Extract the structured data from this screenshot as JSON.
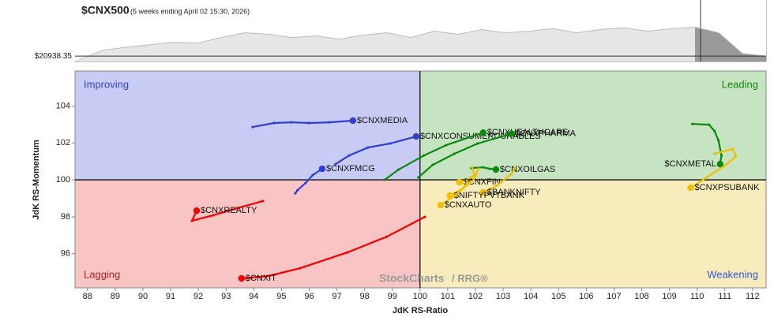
{
  "chart_data": {
    "type": "rrg",
    "title": "$CNX500",
    "subtitle": "(5 weeks ending April 02 15:30, 2026)",
    "xlabel": "JdK RS-Ratio",
    "ylabel": "JdK RS-Momentum",
    "quadrants": {
      "top_left": "Improving",
      "top_right": "Leading",
      "bottom_right": "Weakening",
      "bottom_left": "Lagging"
    },
    "watermark": "StockCharts",
    "watermark2": "/ RRG®",
    "xlim": [
      87.55,
      112.49
    ],
    "ylim": [
      94.15,
      105.9
    ],
    "xticks": [
      88,
      89,
      90,
      91,
      92,
      93,
      94,
      95,
      96,
      97,
      98,
      99,
      100,
      101,
      102,
      103,
      104,
      105,
      106,
      107,
      108,
      109,
      110,
      111,
      112
    ],
    "yticks": [
      96,
      98,
      100,
      102,
      104
    ],
    "center": [
      100,
      100
    ],
    "benchmark": {
      "last_label": "$20938.35",
      "last_value": 20938.35,
      "ylim": [
        20600,
        24200
      ],
      "values": [
        20699,
        21300,
        21500,
        21650,
        21800,
        21750,
        22100,
        22400,
        22300,
        22100,
        22200,
        22000,
        22250,
        22400,
        22100,
        22500,
        22300,
        22600,
        22400,
        22500,
        22650,
        22400,
        22600,
        22700,
        22500,
        22650,
        22750,
        22400,
        21100,
        20938.35
      ]
    },
    "series": [
      {
        "name": "$CNXMEDIA",
        "color": "#2f3fd0",
        "x": [
          93.96,
          94.73,
          95.36,
          96.01,
          96.72,
          97.58
        ],
        "y": [
          102.86,
          103.08,
          103.12,
          103.08,
          103.12,
          103.21
        ]
      },
      {
        "name": "$CNXFMCG",
        "color": "#2f3fd0",
        "x": [
          95.5,
          95.58,
          95.87,
          96.13,
          96.47
        ],
        "y": [
          99.27,
          99.44,
          99.83,
          100.26,
          100.6
        ]
      },
      {
        "name": "$CNXCONSUMERDURABLES",
        "color": "#2f3fd0",
        "x": [
          96.95,
          97.44,
          98.12,
          98.92,
          99.86
        ],
        "y": [
          100.85,
          101.32,
          101.75,
          101.97,
          102.35
        ]
      },
      {
        "name": "$CNXHEALTHCARE",
        "color": "#0a8a0a",
        "x": [
          98.72,
          99.23,
          100.14,
          100.94,
          102.28
        ],
        "y": [
          100.0,
          100.56,
          101.32,
          101.88,
          102.56
        ]
      },
      {
        "name": "$CNXPHARMA",
        "color": "#0a8a0a",
        "x": [
          99.94,
          100.46,
          101.23,
          102.08,
          103.3
        ],
        "y": [
          100.13,
          100.81,
          101.41,
          101.97,
          102.5
        ]
      },
      {
        "name": "$CNXOILGAS",
        "color": "#0a8a0a",
        "x": [
          101.85,
          102.28,
          102.51,
          102.74
        ],
        "y": [
          100.64,
          100.68,
          100.6,
          100.56
        ]
      },
      {
        "name": "$CNXMETAL",
        "color": "#0a8a0a",
        "x": [
          109.83,
          110.43,
          110.63,
          110.77,
          110.88,
          110.83
        ],
        "y": [
          103.03,
          102.99,
          102.65,
          102.14,
          101.32,
          100.85
        ]
      },
      {
        "name": "$CNXPSUBANK",
        "color": "#f0c000",
        "x": [
          110.63,
          111.28,
          111.4,
          111.0,
          110.34,
          109.77
        ],
        "y": [
          101.41,
          101.67,
          101.28,
          100.77,
          100.13,
          99.57
        ]
      },
      {
        "name": "$CNXFIN",
        "color": "#f0c000",
        "x": [
          101.88,
          101.97,
          101.65,
          101.42
        ],
        "y": [
          100.68,
          100.26,
          100.0,
          99.87
        ]
      },
      {
        "name": "$BANKNIFTY",
        "color": "#f0c000",
        "x": [
          103.42,
          103.31,
          102.79,
          102.28
        ],
        "y": [
          100.64,
          100.34,
          99.7,
          99.32
        ]
      },
      {
        "name": "$NIFTYPVTBANK",
        "color": "#f0c000",
        "x": [
          102.11,
          101.94,
          101.51,
          101.08
        ],
        "y": [
          100.6,
          100.0,
          99.49,
          99.15
        ]
      },
      {
        "name": "$CNXAUTO",
        "color": "#f0c000",
        "x": [
          101.71,
          101.37,
          100.97,
          100.74
        ],
        "y": [
          99.83,
          99.27,
          98.85,
          98.63
        ]
      },
      {
        "name": "$CNXREALTY",
        "color": "#f00000",
        "x": [
          94.33,
          93.39,
          92.54,
          91.77,
          91.94
        ],
        "y": [
          98.85,
          98.46,
          98.08,
          97.78,
          98.33
        ]
      },
      {
        "name": "$CNXIT",
        "color": "#f00000",
        "x": [
          100.17,
          98.8,
          97.38,
          95.67,
          94.53,
          93.56
        ],
        "y": [
          97.99,
          96.92,
          96.07,
          95.21,
          94.79,
          94.66
        ]
      }
    ]
  }
}
